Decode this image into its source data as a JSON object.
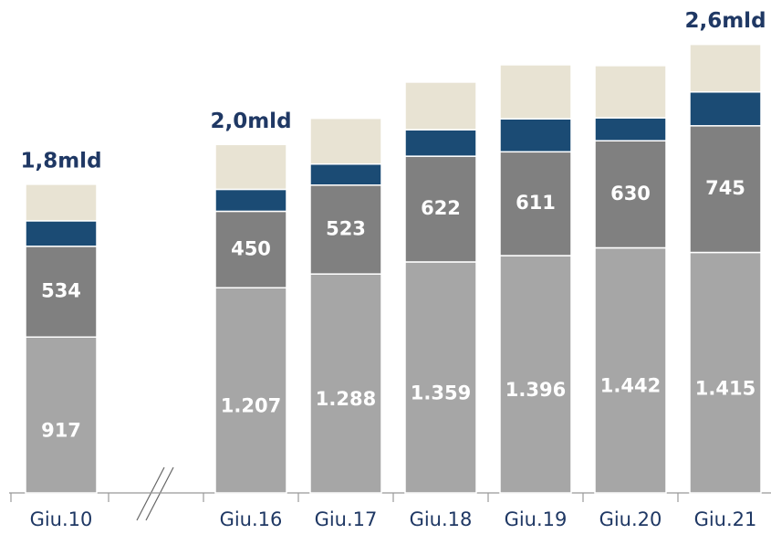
{
  "chart_data": {
    "type": "stacked_bar",
    "categories": [
      "Giu.10",
      null,
      "Giu.16",
      "Giu.17",
      "Giu.18",
      "Giu.19",
      "Giu.20",
      "Giu.21"
    ],
    "series": [
      {
        "color": "#a6a6a6",
        "values": [
          917,
          null,
          1207,
          1288,
          1359,
          1396,
          1442,
          1415
        ],
        "value_labels": [
          "917",
          null,
          "1.207",
          "1.288",
          "1.359",
          "1.396",
          "1.442",
          "1.415"
        ]
      },
      {
        "color": "#808080",
        "labels": true,
        "values": [
          534,
          null,
          450,
          523,
          622,
          611,
          630,
          745
        ]
      },
      {
        "color": "#1b4b74",
        "values": [
          150,
          null,
          129,
          124,
          156,
          194,
          135,
          199
        ]
      },
      {
        "color": "#e8e3d3",
        "values": [
          215,
          null,
          264,
          269,
          280,
          318,
          307,
          280
        ]
      }
    ],
    "total_labels": [
      "1,8mld",
      null,
      "2,0mld",
      null,
      null,
      null,
      null,
      "2,6mld"
    ],
    "axis_break": true
  }
}
